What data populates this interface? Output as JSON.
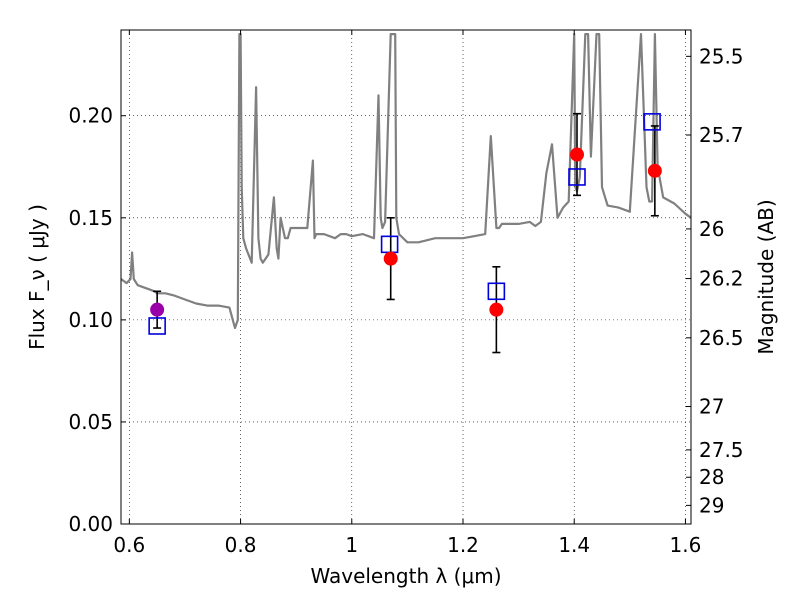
{
  "chart_data": {
    "type": "scatter",
    "xlabel": "Wavelength  λ (μm)",
    "ylabel": "Flux  F_ν ( μJy )",
    "y2label": "Magnitude (AB)",
    "xlim": [
      0.585,
      1.61
    ],
    "ylim": [
      0.0,
      0.242
    ],
    "x_ticks": [
      0.6,
      0.8,
      1.0,
      1.2,
      1.4,
      1.6
    ],
    "x_tick_labels": [
      "0.6",
      "0.8",
      "1",
      "1.2",
      "1.4",
      "1.6"
    ],
    "y_ticks": [
      0.0,
      0.05,
      0.1,
      0.15,
      0.2
    ],
    "y_tick_labels": [
      "0.00",
      "0.05",
      "0.10",
      "0.15",
      "0.20"
    ],
    "y2_ticks": [
      25.5,
      25.7,
      26,
      26.2,
      26.5,
      27,
      27.5,
      28,
      29
    ],
    "y2_tick_labels": [
      "25.5",
      "25.7",
      "26",
      "26.2",
      "26.5",
      "27",
      "27.5",
      "28",
      "29"
    ],
    "grid": true,
    "colors": {
      "model": "#808080",
      "observed": "#ff0000",
      "observed_optical": "#9900aa",
      "model_band": "#0000dd",
      "errorbar": "#000000"
    },
    "model_spectrum": {
      "x": [
        0.585,
        0.595,
        0.602,
        0.605,
        0.608,
        0.615,
        0.625,
        0.635,
        0.645,
        0.65,
        0.655,
        0.665,
        0.68,
        0.7,
        0.72,
        0.74,
        0.76,
        0.78,
        0.79,
        0.795,
        0.798,
        0.8,
        0.802,
        0.805,
        0.81,
        0.82,
        0.828,
        0.832,
        0.836,
        0.84,
        0.85,
        0.86,
        0.865,
        0.868,
        0.872,
        0.88,
        0.885,
        0.89,
        0.9,
        0.92,
        0.93,
        0.933,
        0.936,
        0.95,
        0.97,
        0.98,
        0.99,
        1.0,
        1.02,
        1.04,
        1.048,
        1.052,
        1.055,
        1.06,
        1.07,
        1.075,
        1.078,
        1.08,
        1.085,
        1.1,
        1.12,
        1.15,
        1.18,
        1.2,
        1.22,
        1.24,
        1.25,
        1.26,
        1.265,
        1.27,
        1.28,
        1.3,
        1.32,
        1.33,
        1.34,
        1.35,
        1.36,
        1.37,
        1.38,
        1.39,
        1.4,
        1.402,
        1.405,
        1.41,
        1.42,
        1.425,
        1.43,
        1.44,
        1.445,
        1.45,
        1.46,
        1.48,
        1.5,
        1.52,
        1.53,
        1.535,
        1.54,
        1.545,
        1.55,
        1.56,
        1.58,
        1.6,
        1.61
      ],
      "y": [
        0.12,
        0.118,
        0.12,
        0.133,
        0.12,
        0.117,
        0.116,
        0.115,
        0.114,
        0.113,
        0.113,
        0.113,
        0.112,
        0.11,
        0.108,
        0.107,
        0.107,
        0.106,
        0.096,
        0.1,
        0.24,
        0.24,
        0.165,
        0.14,
        0.135,
        0.128,
        0.214,
        0.14,
        0.13,
        0.128,
        0.132,
        0.16,
        0.135,
        0.13,
        0.15,
        0.14,
        0.14,
        0.145,
        0.145,
        0.145,
        0.178,
        0.14,
        0.142,
        0.142,
        0.14,
        0.142,
        0.142,
        0.141,
        0.142,
        0.14,
        0.21,
        0.15,
        0.145,
        0.148,
        0.24,
        0.24,
        0.24,
        0.15,
        0.142,
        0.138,
        0.138,
        0.14,
        0.14,
        0.14,
        0.141,
        0.142,
        0.19,
        0.145,
        0.145,
        0.147,
        0.147,
        0.147,
        0.148,
        0.146,
        0.148,
        0.172,
        0.186,
        0.15,
        0.155,
        0.158,
        0.24,
        0.165,
        0.163,
        0.17,
        0.24,
        0.24,
        0.18,
        0.24,
        0.24,
        0.165,
        0.156,
        0.155,
        0.153,
        0.24,
        0.165,
        0.158,
        0.158,
        0.24,
        0.175,
        0.16,
        0.157,
        0.152,
        0.15
      ]
    },
    "series": [
      {
        "marker": "filled-circle",
        "points": [
          {
            "x": 0.65,
            "y": 0.105,
            "err": 0.009
          },
          {
            "x": 1.07,
            "y": 0.13,
            "err": 0.02
          },
          {
            "x": 1.26,
            "y": 0.105,
            "err": 0.021
          },
          {
            "x": 1.405,
            "y": 0.181,
            "err": 0.02
          },
          {
            "x": 1.545,
            "y": 0.173,
            "err": 0.022
          }
        ]
      },
      {
        "marker": "open-square",
        "points": [
          {
            "x": 0.65,
            "y": 0.097
          },
          {
            "x": 1.068,
            "y": 0.137
          },
          {
            "x": 1.26,
            "y": 0.114
          },
          {
            "x": 1.405,
            "y": 0.17
          },
          {
            "x": 1.54,
            "y": 0.197
          }
        ]
      }
    ]
  }
}
